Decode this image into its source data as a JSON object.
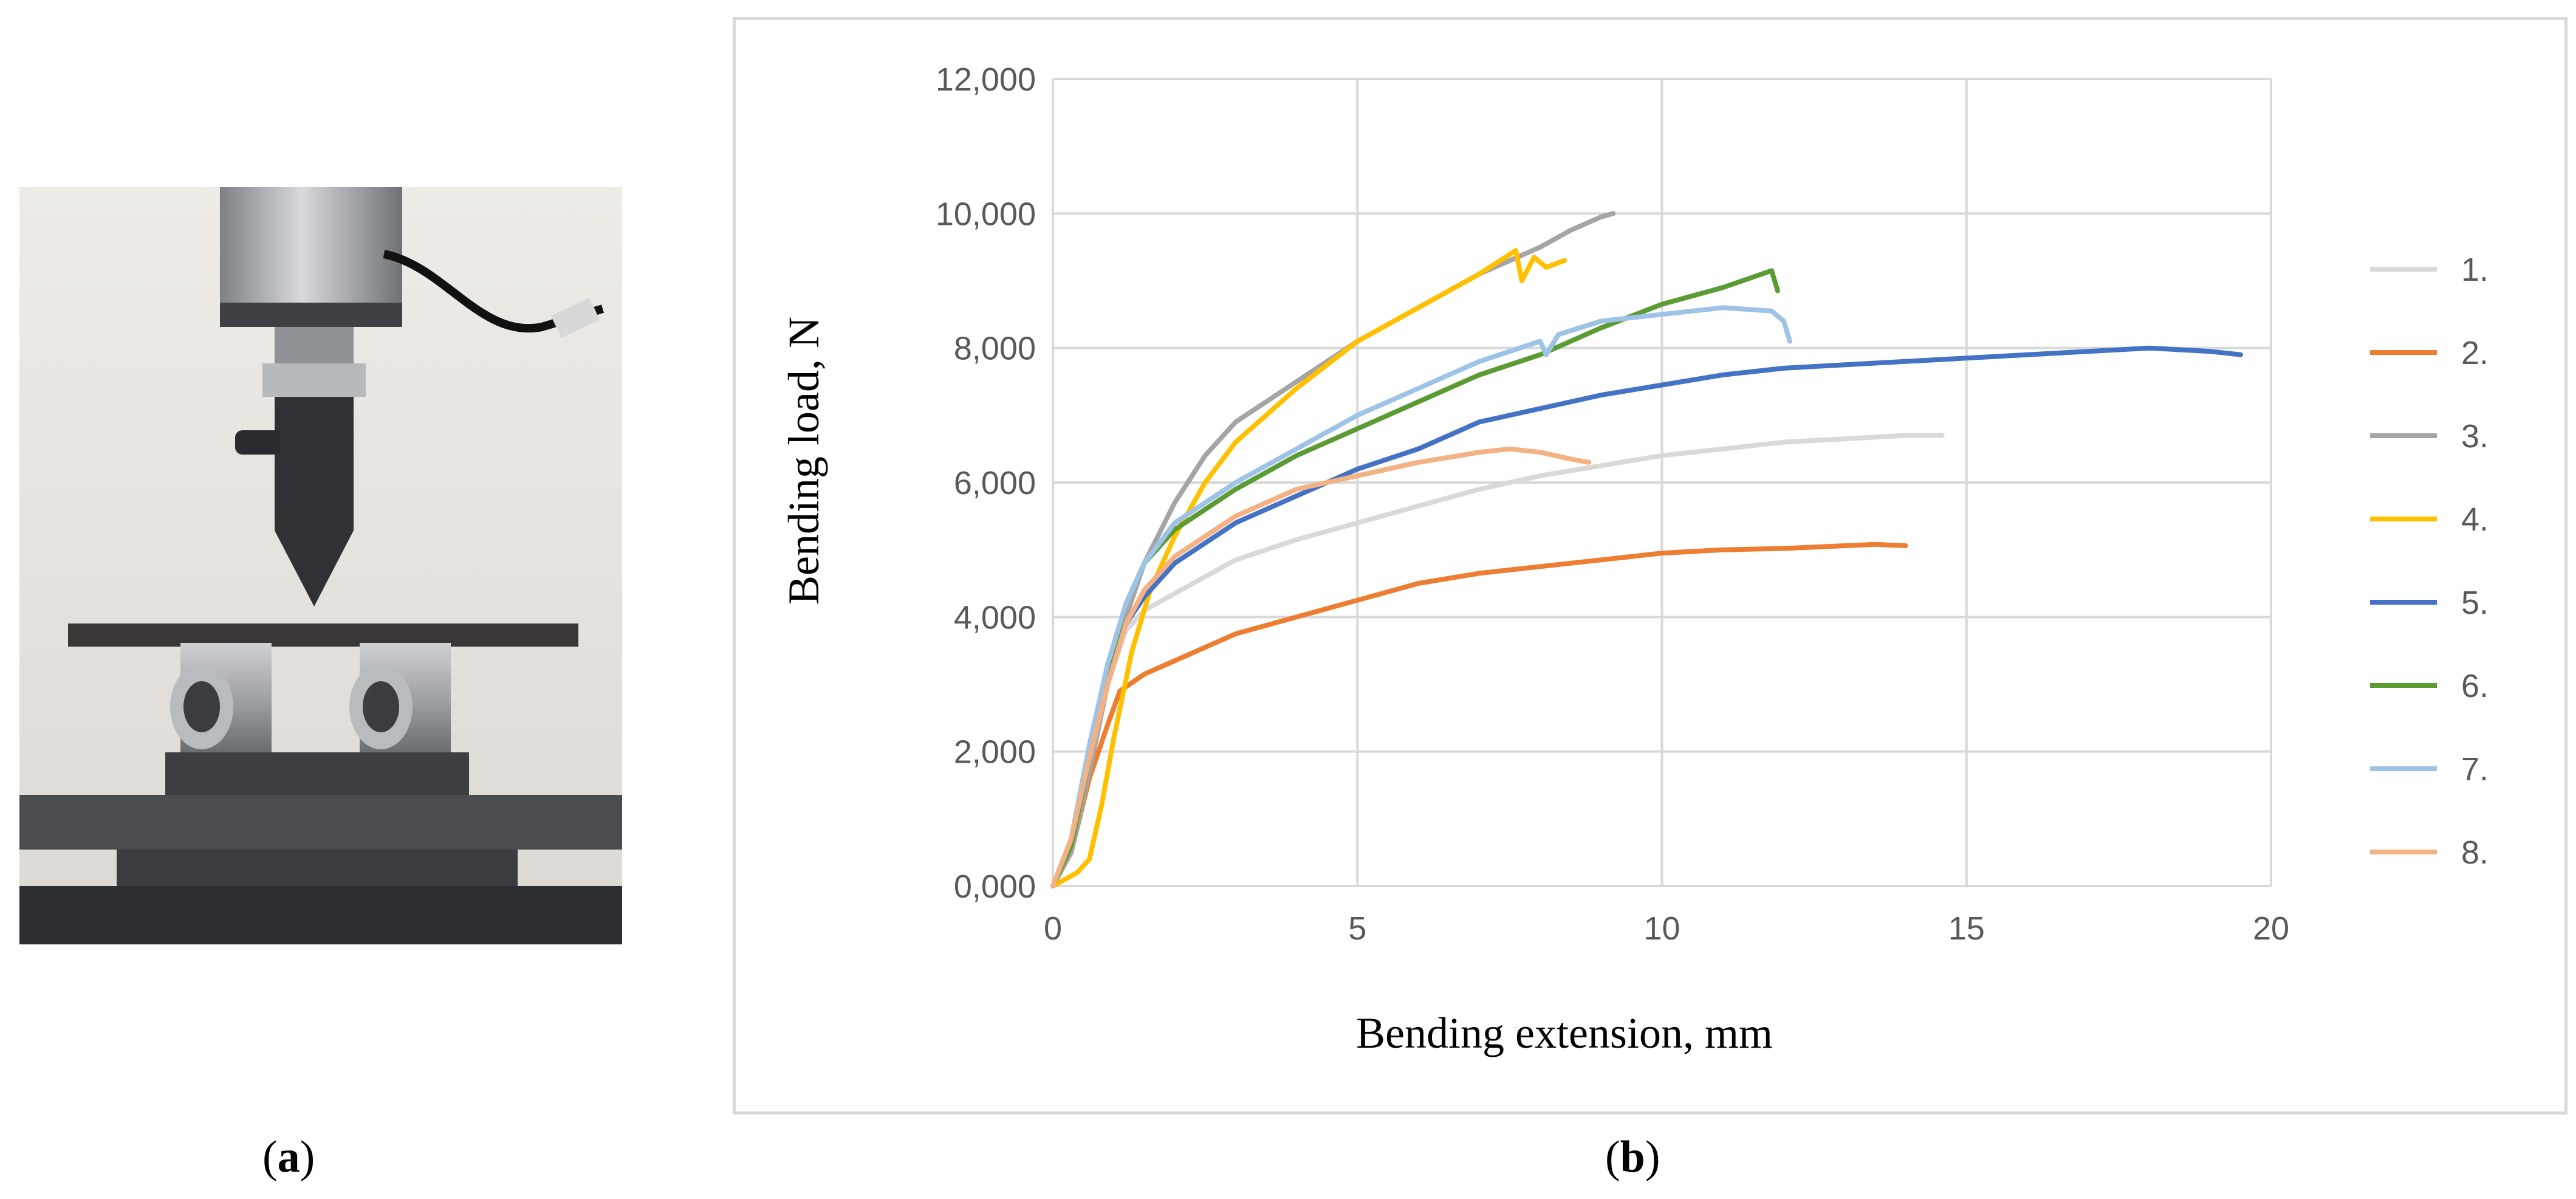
{
  "figure": {
    "caption_a_open": "(",
    "caption_a_letter": "a",
    "caption_a_close": ")",
    "caption_b_open": "(",
    "caption_b_letter": "b",
    "caption_b_close": ")"
  },
  "colors": {
    "wall": "#e9e6e2",
    "machine": "#4a4c50",
    "chart_border": "#d9d9d9",
    "grid": "#d9d9d9"
  },
  "chart_data": {
    "type": "line",
    "title": "",
    "xlabel": "Bending extension, mm",
    "ylabel": "Bending load, N",
    "xlim": [
      0,
      20
    ],
    "ylim": [
      0,
      12000
    ],
    "x_ticks": [
      0,
      5,
      10,
      15,
      20
    ],
    "x_tick_labels": [
      "0",
      "5",
      "10",
      "15",
      "20"
    ],
    "y_ticks": [
      0,
      2000,
      4000,
      6000,
      8000,
      10000,
      12000
    ],
    "y_tick_labels": [
      "0,000",
      "2,000",
      "4,000",
      "6,000",
      "8,000",
      "10,000",
      "12,000"
    ],
    "grid": true,
    "legend_position": "right",
    "series": [
      {
        "name": "1.",
        "color": "#d9d9d9",
        "points": [
          [
            0,
            0
          ],
          [
            0.3,
            600
          ],
          [
            0.6,
            1900
          ],
          [
            0.9,
            3000
          ],
          [
            1.2,
            3800
          ],
          [
            1.5,
            4100
          ],
          [
            2,
            4350
          ],
          [
            3,
            4850
          ],
          [
            4,
            5150
          ],
          [
            5,
            5400
          ],
          [
            6,
            5650
          ],
          [
            7,
            5900
          ],
          [
            8,
            6100
          ],
          [
            9,
            6250
          ],
          [
            10,
            6400
          ],
          [
            11,
            6500
          ],
          [
            12,
            6600
          ],
          [
            13,
            6650
          ],
          [
            14,
            6700
          ],
          [
            14.6,
            6700
          ]
        ]
      },
      {
        "name": "2.",
        "color": "#ed7d31",
        "points": [
          [
            0,
            0
          ],
          [
            0.3,
            500
          ],
          [
            0.6,
            1600
          ],
          [
            0.9,
            2400
          ],
          [
            1.1,
            2900
          ],
          [
            1.5,
            3150
          ],
          [
            2,
            3350
          ],
          [
            3,
            3750
          ],
          [
            4,
            4000
          ],
          [
            5,
            4250
          ],
          [
            6,
            4500
          ],
          [
            7,
            4650
          ],
          [
            8,
            4750
          ],
          [
            9,
            4850
          ],
          [
            10,
            4950
          ],
          [
            11,
            5000
          ],
          [
            12,
            5020
          ],
          [
            13,
            5060
          ],
          [
            13.5,
            5080
          ],
          [
            14,
            5060
          ]
        ]
      },
      {
        "name": "3.",
        "color": "#a5a5a5",
        "points": [
          [
            0,
            0
          ],
          [
            0.3,
            500
          ],
          [
            0.6,
            1700
          ],
          [
            0.9,
            3000
          ],
          [
            1.2,
            4000
          ],
          [
            1.5,
            4800
          ],
          [
            2,
            5700
          ],
          [
            2.5,
            6400
          ],
          [
            3,
            6900
          ],
          [
            4,
            7500
          ],
          [
            5,
            8100
          ],
          [
            6,
            8600
          ],
          [
            7,
            9100
          ],
          [
            8,
            9500
          ],
          [
            8.5,
            9750
          ],
          [
            9,
            9950
          ],
          [
            9.2,
            10000
          ]
        ]
      },
      {
        "name": "4.",
        "color": "#ffc000",
        "points": [
          [
            0,
            0
          ],
          [
            0.4,
            200
          ],
          [
            0.6,
            400
          ],
          [
            0.8,
            1200
          ],
          [
            1,
            2200
          ],
          [
            1.3,
            3500
          ],
          [
            1.6,
            4400
          ],
          [
            2,
            5200
          ],
          [
            2.5,
            6000
          ],
          [
            3,
            6600
          ],
          [
            4,
            7400
          ],
          [
            5,
            8100
          ],
          [
            6,
            8600
          ],
          [
            7,
            9100
          ],
          [
            7.6,
            9450
          ],
          [
            7.7,
            9000
          ],
          [
            7.9,
            9350
          ],
          [
            8.1,
            9200
          ],
          [
            8.4,
            9300
          ]
        ]
      },
      {
        "name": "5.",
        "color": "#4472c4",
        "points": [
          [
            0,
            0
          ],
          [
            0.3,
            700
          ],
          [
            0.6,
            2000
          ],
          [
            0.9,
            3100
          ],
          [
            1.2,
            3900
          ],
          [
            1.5,
            4300
          ],
          [
            2,
            4800
          ],
          [
            3,
            5400
          ],
          [
            4,
            5800
          ],
          [
            5,
            6200
          ],
          [
            6,
            6500
          ],
          [
            7,
            6900
          ],
          [
            8,
            7100
          ],
          [
            9,
            7300
          ],
          [
            10,
            7450
          ],
          [
            11,
            7600
          ],
          [
            12,
            7700
          ],
          [
            13,
            7750
          ],
          [
            14,
            7800
          ],
          [
            15,
            7850
          ],
          [
            16,
            7900
          ],
          [
            17,
            7950
          ],
          [
            18,
            8000
          ],
          [
            19,
            7950
          ],
          [
            19.5,
            7900
          ]
        ]
      },
      {
        "name": "6.",
        "color": "#5b9b34",
        "points": [
          [
            0,
            0
          ],
          [
            0.3,
            600
          ],
          [
            0.6,
            1900
          ],
          [
            0.9,
            3200
          ],
          [
            1.2,
            4200
          ],
          [
            1.5,
            4800
          ],
          [
            2,
            5300
          ],
          [
            3,
            5900
          ],
          [
            4,
            6400
          ],
          [
            5,
            6800
          ],
          [
            6,
            7200
          ],
          [
            7,
            7600
          ],
          [
            8,
            7900
          ],
          [
            9,
            8300
          ],
          [
            10,
            8650
          ],
          [
            11,
            8900
          ],
          [
            11.8,
            9150
          ],
          [
            11.9,
            8850
          ]
        ]
      },
      {
        "name": "7.",
        "color": "#9dc3e6",
        "points": [
          [
            0,
            0
          ],
          [
            0.3,
            700
          ],
          [
            0.6,
            2100
          ],
          [
            0.9,
            3300
          ],
          [
            1.2,
            4200
          ],
          [
            1.5,
            4800
          ],
          [
            2,
            5400
          ],
          [
            3,
            6000
          ],
          [
            4,
            6500
          ],
          [
            5,
            7000
          ],
          [
            6,
            7400
          ],
          [
            7,
            7800
          ],
          [
            8,
            8100
          ],
          [
            8.1,
            7900
          ],
          [
            8.3,
            8200
          ],
          [
            9,
            8400
          ],
          [
            10,
            8500
          ],
          [
            11,
            8600
          ],
          [
            11.8,
            8550
          ],
          [
            12,
            8400
          ],
          [
            12.1,
            8100
          ]
        ]
      },
      {
        "name": "8.",
        "color": "#f4b183",
        "points": [
          [
            0,
            0
          ],
          [
            0.3,
            700
          ],
          [
            0.6,
            1900
          ],
          [
            0.9,
            3000
          ],
          [
            1.2,
            3900
          ],
          [
            1.5,
            4400
          ],
          [
            2,
            4900
          ],
          [
            3,
            5500
          ],
          [
            4,
            5900
          ],
          [
            5,
            6100
          ],
          [
            6,
            6300
          ],
          [
            7,
            6450
          ],
          [
            7.5,
            6500
          ],
          [
            8,
            6450
          ],
          [
            8.5,
            6350
          ],
          [
            8.8,
            6300
          ]
        ]
      }
    ]
  }
}
